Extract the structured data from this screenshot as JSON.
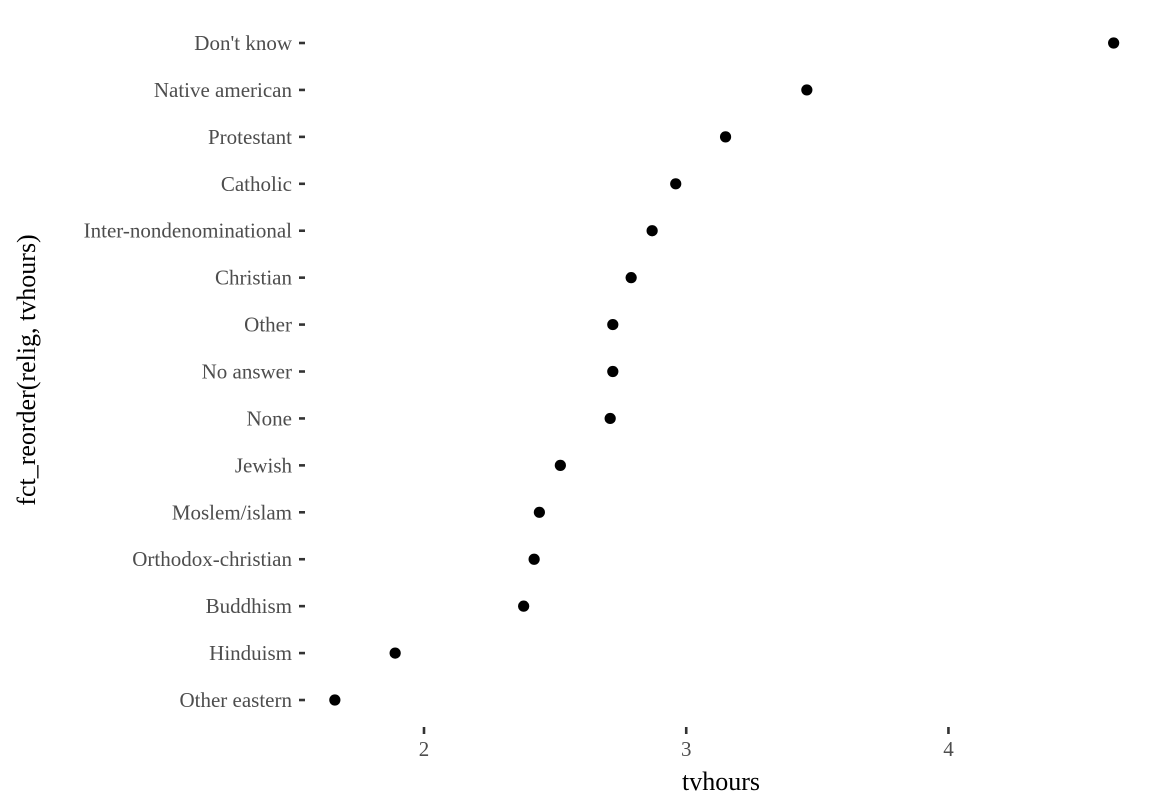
{
  "chart_data": {
    "type": "scatter",
    "title": "",
    "xlabel": "tvhours",
    "ylabel": "fct_reorder(relig, tvhours)",
    "xlim": [
      1.55,
      4.7
    ],
    "x_ticks": [
      2,
      3,
      4
    ],
    "x_tick_labels": [
      "2",
      "3",
      "4"
    ],
    "grid": false,
    "categories": [
      "Don't know",
      "Native american",
      "Protestant",
      "Catholic",
      "Inter-nondenominational",
      "Christian",
      "Other",
      "No answer",
      "None",
      "Jewish",
      "Moslem/islam",
      "Orthodox-christian",
      "Buddhism",
      "Hinduism",
      "Other eastern"
    ],
    "values": [
      4.63,
      3.46,
      3.15,
      2.96,
      2.87,
      2.79,
      2.72,
      2.72,
      2.71,
      2.52,
      2.44,
      2.42,
      2.38,
      1.89,
      1.66
    ],
    "point_color": "#000000"
  }
}
